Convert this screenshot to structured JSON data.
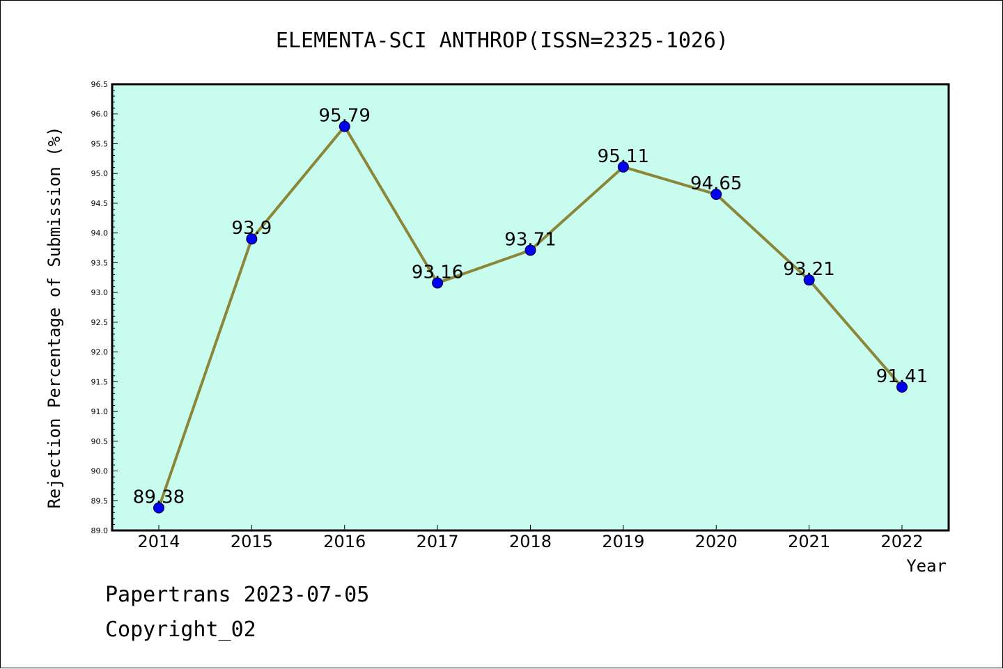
{
  "chart_data": {
    "type": "line",
    "title": "ELEMENTA-SCI ANTHROP(ISSN=2325-1026)",
    "xlabel": "Year",
    "ylabel": "Rejection Percentage of Submission (%)",
    "x": [
      "2014",
      "2015",
      "2016",
      "2017",
      "2018",
      "2019",
      "2020",
      "2021",
      "2022"
    ],
    "values": [
      89.38,
      93.9,
      95.79,
      93.16,
      93.71,
      95.11,
      94.65,
      93.21,
      91.41
    ],
    "data_labels": [
      "89.38",
      "93.9",
      "95.79",
      "93.16",
      "93.71",
      "95.11",
      "94.65",
      "93.21",
      "91.41"
    ],
    "y_ticks": [
      "89.0",
      "89.5",
      "90.0",
      "90.5",
      "91.0",
      "91.5",
      "92.0",
      "92.5",
      "93.0",
      "93.5",
      "94.0",
      "94.5",
      "95.0",
      "95.5",
      "96.0",
      "96.5"
    ],
    "ylim": [
      89.0,
      96.5
    ],
    "grid": false,
    "colors": {
      "plot_background": "#c8fcee",
      "line": "#8b8738",
      "marker": "#0000ee"
    }
  },
  "footer": {
    "line1": "Papertrans 2023-07-05",
    "line2": "Copyright_02"
  }
}
